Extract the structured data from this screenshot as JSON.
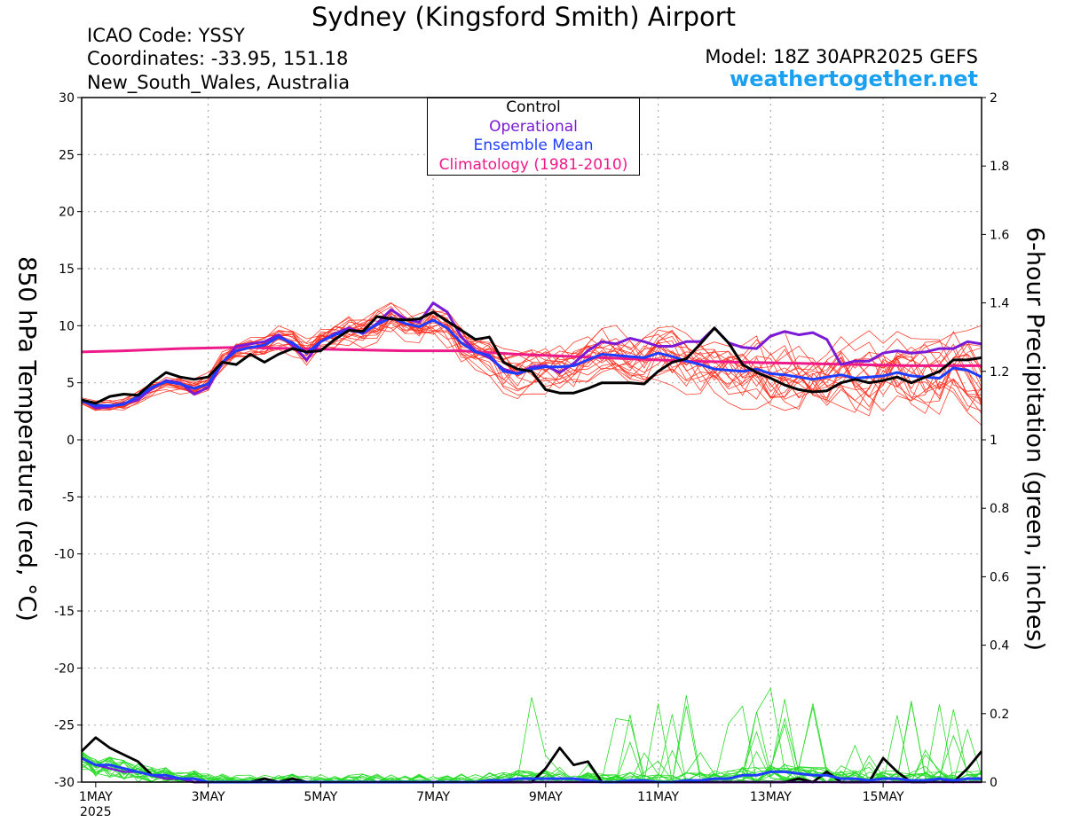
{
  "header": {
    "title": "Sydney (Kingsford Smith) Airport",
    "icao": "ICAO Code: YSSY",
    "coordinates": "Coordinates: -33.95, 151.18",
    "region": "New_South_Wales, Australia",
    "model": "Model: 18Z 30APR2025 GEFS",
    "brand": "weathertogether.net"
  },
  "colors": {
    "ensemble": "#ff2a1a",
    "control": "#000000",
    "operational": "#7a1ad6",
    "mean": "#1f3dff",
    "climatology": "#ee1a8a",
    "precip_ensemble": "#2adb2a",
    "brand": "#1aa0f0"
  },
  "chart_data": {
    "type": "line",
    "title": "Sydney (Kingsford Smith) Airport",
    "ylabel": "850 hPa Temperature (red, °C)",
    "y2label": "6-hour Precipitation (green, inches)",
    "ylim": [
      -30,
      30
    ],
    "y2lim": [
      0,
      2
    ],
    "yticks": [
      "30",
      "25",
      "20",
      "15",
      "10",
      "5",
      "0",
      "-5",
      "-10",
      "-15",
      "-20",
      "-25",
      "-30"
    ],
    "y2ticks": [
      "2",
      "1.8",
      "1.6",
      "1.4",
      "1.2",
      "1",
      "0.8",
      "0.6",
      "0.4",
      "0.2",
      "0"
    ],
    "xtick_labels": [
      "1MAY",
      "3MAY",
      "5MAY",
      "7MAY",
      "9MAY",
      "11MAY",
      "13MAY",
      "15MAY"
    ],
    "xtick_positions": [
      1,
      3,
      5,
      7,
      9,
      11,
      13,
      15
    ],
    "xtick_sub": "2025",
    "xlim": [
      0.75,
      16.75
    ],
    "grid": true,
    "legend": {
      "placement": "top-center",
      "entries": [
        "Control",
        "Operational",
        "Ensemble Mean",
        "Climatology (1981-2010)"
      ]
    },
    "series": [
      {
        "name": "Control",
        "x": [
          0.75,
          1,
          1.25,
          1.5,
          1.75,
          2,
          2.25,
          2.5,
          2.75,
          3,
          3.25,
          3.5,
          3.75,
          4,
          4.25,
          4.5,
          4.75,
          5,
          5.25,
          5.5,
          5.75,
          6,
          6.25,
          6.5,
          6.75,
          7,
          7.25,
          7.5,
          7.75,
          8,
          8.25,
          8.5,
          8.75,
          9,
          9.25,
          9.5,
          9.75,
          10,
          10.25,
          10.5,
          10.75,
          11,
          11.25,
          11.5,
          11.75,
          12,
          12.25,
          12.5,
          12.75,
          13,
          13.25,
          13.5,
          13.75,
          14,
          14.25,
          14.5,
          14.75,
          15,
          15.25,
          15.5,
          15.75,
          16,
          16.25,
          16.5,
          16.75
        ],
        "values": [
          3.5,
          3.2,
          3.8,
          4.0,
          3.9,
          5.0,
          5.9,
          5.5,
          5.3,
          5.5,
          6.8,
          6.6,
          7.5,
          6.8,
          7.5,
          8.0,
          7.7,
          7.8,
          8.8,
          9.6,
          9.5,
          10.8,
          10.6,
          10.5,
          10.6,
          11.2,
          10.4,
          9.6,
          8.8,
          9.0,
          6.8,
          6.2,
          6.0,
          4.4,
          4.1,
          4.1,
          4.5,
          5.0,
          5.0,
          5.0,
          4.9,
          6.0,
          6.8,
          7.1,
          8.4,
          9.8,
          8.5,
          6.6,
          5.9,
          5.4,
          4.8,
          4.4,
          4.2,
          4.3,
          5.0,
          5.3,
          5.0,
          5.2,
          5.5,
          5.0,
          5.5,
          6.0,
          7.0,
          7.0,
          7.2
        ]
      },
      {
        "name": "Operational",
        "x": [
          0.75,
          1,
          1.25,
          1.5,
          1.75,
          2,
          2.25,
          2.5,
          2.75,
          3,
          3.25,
          3.5,
          3.75,
          4,
          4.25,
          4.5,
          4.75,
          5,
          5.25,
          5.5,
          5.75,
          6,
          6.25,
          6.5,
          6.75,
          7,
          7.25,
          7.5,
          7.75,
          8,
          8.25,
          8.5,
          8.75,
          9,
          9.25,
          9.5,
          9.75,
          10,
          10.25,
          10.5,
          10.75,
          11,
          11.25,
          11.5,
          11.75,
          12,
          12.25,
          12.5,
          12.75,
          13,
          13.25,
          13.5,
          13.75,
          14,
          14.25,
          14.5,
          14.75,
          15,
          15.25,
          15.5,
          15.75,
          16,
          16.25,
          16.5,
          16.75
        ],
        "values": [
          3.5,
          2.8,
          2.9,
          3.2,
          3.5,
          4.5,
          5.2,
          5.0,
          4.0,
          4.6,
          6.7,
          8.2,
          8.4,
          8.6,
          9.2,
          8.3,
          7.0,
          8.6,
          9.3,
          9.8,
          9.3,
          10.2,
          11.4,
          10.6,
          10.3,
          12.0,
          11.2,
          9.0,
          7.8,
          7.2,
          6.2,
          5.8,
          6.4,
          6.5,
          5.9,
          6.7,
          7.8,
          8.6,
          8.4,
          8.9,
          8.6,
          8.2,
          8.2,
          8.6,
          8.6,
          9.8,
          8.5,
          8.1,
          8.0,
          9.1,
          9.5,
          9.2,
          9.4,
          8.8,
          6.6,
          6.9,
          6.9,
          7.6,
          7.8,
          7.6,
          7.7,
          8.0,
          8.0,
          8.6,
          8.4
        ]
      },
      {
        "name": "Ensemble Mean",
        "x": [
          0.75,
          1,
          1.25,
          1.5,
          1.75,
          2,
          2.25,
          2.5,
          2.75,
          3,
          3.25,
          3.5,
          3.75,
          4,
          4.25,
          4.5,
          4.75,
          5,
          5.25,
          5.5,
          5.75,
          6,
          6.25,
          6.5,
          6.75,
          7,
          7.25,
          7.5,
          7.75,
          8,
          8.25,
          8.5,
          8.75,
          9,
          9.25,
          9.5,
          9.75,
          10,
          10.25,
          10.5,
          10.75,
          11,
          11.25,
          11.5,
          11.75,
          12,
          12.25,
          12.5,
          12.75,
          13,
          13.25,
          13.5,
          13.75,
          14,
          14.25,
          14.5,
          14.75,
          15,
          15.25,
          15.5,
          15.75,
          16,
          16.25,
          16.5,
          16.75
        ],
        "values": [
          3.4,
          3.0,
          3.0,
          3.1,
          3.8,
          4.6,
          5.1,
          4.9,
          4.5,
          4.9,
          6.8,
          7.8,
          8.1,
          8.3,
          9.0,
          8.5,
          7.6,
          8.6,
          9.2,
          9.6,
          9.4,
          10.1,
          10.7,
          10.2,
          9.9,
          10.5,
          9.8,
          8.5,
          7.7,
          7.4,
          6.0,
          5.8,
          6.2,
          6.4,
          6.4,
          6.5,
          7.0,
          7.5,
          7.4,
          7.3,
          7.2,
          7.6,
          7.3,
          6.9,
          6.6,
          6.2,
          6.1,
          6.0,
          6.2,
          5.8,
          5.7,
          5.5,
          5.3,
          5.5,
          5.7,
          5.4,
          5.5,
          5.6,
          5.9,
          5.6,
          5.5,
          5.4,
          6.3,
          6.1,
          5.5
        ]
      },
      {
        "name": "Climatology (1981-2010)",
        "x": [
          0.75,
          1.5,
          2.5,
          3.5,
          4.5,
          5.5,
          6.5,
          7.5,
          8.5,
          9.5,
          10.5,
          11.5,
          12.5,
          13.5,
          14.5,
          15.5,
          16.5,
          16.75
        ],
        "values": [
          7.7,
          7.8,
          8.0,
          8.1,
          8.0,
          7.9,
          7.8,
          7.8,
          7.5,
          7.3,
          7.1,
          6.9,
          6.8,
          6.7,
          6.6,
          6.5,
          6.5,
          6.5
        ]
      }
    ],
    "precip_series": [
      {
        "name": "Control",
        "x": [
          0.75,
          1,
          1.25,
          1.5,
          1.75,
          2,
          2.25,
          2.5,
          2.75,
          3,
          3.25,
          3.5,
          3.75,
          4,
          4.25,
          4.5,
          4.75,
          5,
          5.25,
          5.5,
          5.75,
          6,
          6.25,
          6.5,
          6.75,
          7,
          7.25,
          7.5,
          7.75,
          8,
          8.25,
          8.5,
          8.75,
          9,
          9.25,
          9.5,
          9.75,
          10,
          10.25,
          10.5,
          10.75,
          11,
          11.25,
          11.5,
          11.75,
          12,
          12.25,
          12.5,
          12.75,
          13,
          13.25,
          13.5,
          13.75,
          14,
          14.25,
          14.5,
          14.75,
          15,
          15.25,
          15.5,
          15.75,
          16,
          16.25,
          16.5,
          16.75
        ],
        "values": [
          0.09,
          0.13,
          0.1,
          0.08,
          0.06,
          0.02,
          0.01,
          0.01,
          0.0,
          0.0,
          0.0,
          0.0,
          0.0,
          0.01,
          0.0,
          0.01,
          0.0,
          0.0,
          0.0,
          0.0,
          0.0,
          0.0,
          0.0,
          0.0,
          0.0,
          0.0,
          0.0,
          0.0,
          0.0,
          0.0,
          0.0,
          0.0,
          0.0,
          0.04,
          0.1,
          0.05,
          0.06,
          0.0,
          0.0,
          0.0,
          0.0,
          0.0,
          0.0,
          0.0,
          0.0,
          0.0,
          0.0,
          0.0,
          0.0,
          0.0,
          0.0,
          0.01,
          0.0,
          0.03,
          0.0,
          0.0,
          0.0,
          0.07,
          0.03,
          0.0,
          0.0,
          0.01,
          0.0,
          0.04,
          0.09
        ]
      },
      {
        "name": "Operational",
        "x": [
          0.75,
          1,
          1.25,
          1.5,
          1.75,
          2,
          2.25,
          2.5,
          2.75,
          3,
          3.25,
          3.5,
          3.75,
          4,
          4.25,
          4.5,
          4.75,
          5,
          5.25,
          5.5,
          5.75,
          6,
          6.25,
          6.5,
          6.75,
          7,
          7.25,
          7.5,
          7.75,
          8,
          8.25,
          8.5,
          8.75,
          9,
          9.25,
          9.5,
          9.75,
          10,
          10.25,
          10.5,
          10.75,
          11,
          11.25,
          11.5,
          11.75,
          12,
          12.25,
          12.5,
          12.75,
          13,
          13.25,
          13.5,
          13.75,
          14,
          14.25,
          14.5,
          14.75,
          15,
          15.25,
          15.5,
          15.75,
          16,
          16.25,
          16.5,
          16.75
        ],
        "values": [
          0.07,
          0.05,
          0.04,
          0.03,
          0.03,
          0.02,
          0.01,
          0.01,
          0.0,
          0.0,
          0.0,
          0.0,
          0.0,
          0.0,
          0.0,
          0.0,
          0.0,
          0.0,
          0.0,
          0.0,
          0.0,
          0.0,
          0.0,
          0.0,
          0.0,
          0.0,
          0.0,
          0.0,
          0.0,
          0.0,
          0.0,
          0.0,
          0.0,
          0.0,
          0.0,
          0.0,
          0.0,
          0.0,
          0.0,
          0.0,
          0.0,
          0.0,
          0.0,
          0.0,
          0.0,
          0.0,
          0.0,
          0.0,
          0.0,
          0.0,
          0.0,
          0.0,
          0.0,
          0.0,
          0.0,
          0.0,
          0.0,
          0.0,
          0.0,
          0.0,
          0.0,
          0.0,
          0.0,
          0.0,
          0.0
        ]
      },
      {
        "name": "Ensemble Mean",
        "x": [
          0.75,
          1,
          1.25,
          1.5,
          1.75,
          2,
          2.25,
          2.5,
          2.75,
          3,
          3.25,
          3.5,
          3.75,
          4,
          4.25,
          4.5,
          4.75,
          5,
          5.25,
          5.5,
          5.75,
          6,
          6.25,
          6.5,
          6.75,
          7,
          7.25,
          7.5,
          7.75,
          8,
          8.25,
          8.5,
          8.75,
          9,
          9.25,
          9.5,
          9.75,
          10,
          10.25,
          10.5,
          10.75,
          11,
          11.25,
          11.5,
          11.75,
          12,
          12.25,
          12.5,
          12.75,
          13,
          13.25,
          13.5,
          13.75,
          14,
          14.25,
          14.5,
          14.75,
          15,
          15.25,
          15.5,
          15.75,
          16,
          16.25,
          16.5,
          16.75
        ],
        "values": [
          0.07,
          0.05,
          0.05,
          0.04,
          0.03,
          0.02,
          0.02,
          0.01,
          0.01,
          0.0,
          0.0,
          0.0,
          0.0,
          0.0,
          0.0,
          0.0,
          0.0,
          0.0,
          0.0,
          0.0,
          0.0,
          0.0,
          0.0,
          0.0,
          0.0,
          0.0,
          0.0,
          0.0,
          0.0,
          0.005,
          0.005,
          0.01,
          0.01,
          0.01,
          0.01,
          0.01,
          0.005,
          0.0,
          0.0,
          0.005,
          0.005,
          0.0,
          0.0,
          0.005,
          0.005,
          0.01,
          0.01,
          0.02,
          0.02,
          0.03,
          0.03,
          0.025,
          0.02,
          0.02,
          0.01,
          0.01,
          0.005,
          0.01,
          0.01,
          0.005,
          0.005,
          0.01,
          0.005,
          0.01,
          0.01
        ]
      }
    ]
  }
}
